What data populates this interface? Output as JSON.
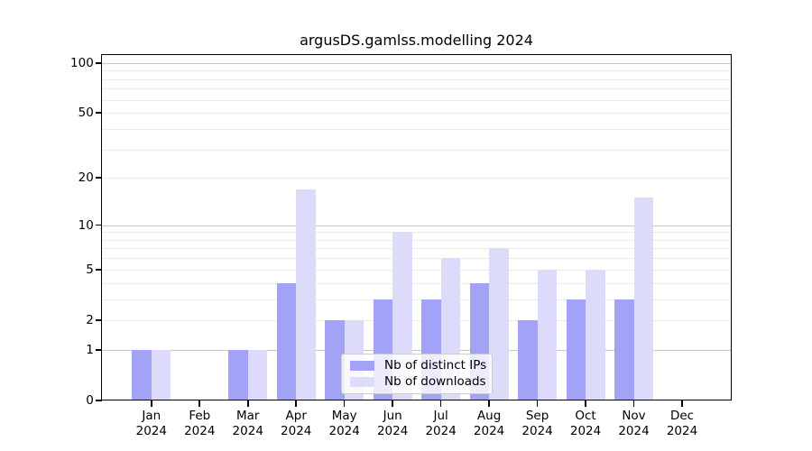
{
  "chart_data": {
    "type": "bar",
    "title": "argusDS.gamlss.modelling 2024",
    "categories": [
      "Jan",
      "Feb",
      "Mar",
      "Apr",
      "May",
      "Jun",
      "Jul",
      "Aug",
      "Sep",
      "Oct",
      "Nov",
      "Dec"
    ],
    "year_label": "2024",
    "series": [
      {
        "name": "Nb of distinct IPs",
        "color": "#a2a2f6",
        "values": [
          1,
          0,
          1,
          4,
          2,
          3,
          3,
          4,
          2,
          3,
          3,
          0
        ]
      },
      {
        "name": "Nb of downloads",
        "color": "#dcdcfa",
        "values": [
          1,
          0,
          1,
          17,
          2,
          9,
          6,
          7,
          5,
          5,
          15,
          0
        ]
      }
    ],
    "y_axis": {
      "scale": "log1p",
      "tick_labels": [
        0,
        1,
        2,
        5,
        10,
        20,
        50,
        100
      ],
      "top_value": 113,
      "major_gridlines": [
        1,
        10,
        100
      ],
      "minor_gridlines": [
        2,
        3,
        4,
        5,
        6,
        7,
        8,
        9,
        20,
        30,
        40,
        50,
        60,
        70,
        80,
        90
      ]
    },
    "grid": true,
    "legend_position": "lower center",
    "colors": {
      "major_grid": "#c6c6c6",
      "minor_grid": "#ebebeb",
      "axis": "#000000",
      "background": "#ffffff"
    }
  }
}
